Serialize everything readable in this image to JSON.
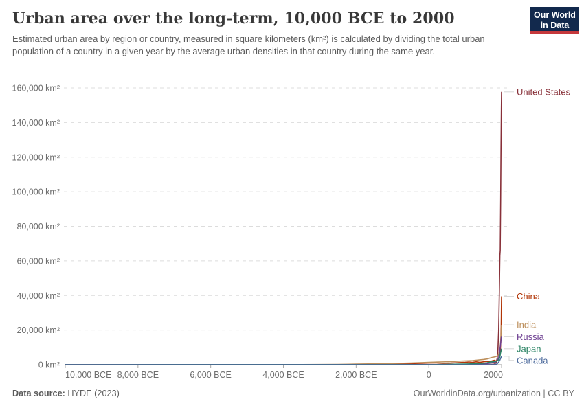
{
  "header": {
    "logo_line1": "Our World",
    "logo_line2": "in Data",
    "logo_bg_color": "#12294d",
    "logo_bar_color": "#c5383c"
  },
  "chart_data": {
    "type": "line",
    "title": "Urban area over the long-term, 10,000 BCE to 2000",
    "subtitle": "Estimated urban area by region or country, measured in square kilometers (km²) is calculated by dividing the total urban population of a country in a given year by the average urban densities in that country during the same year.",
    "xlabel": "",
    "ylabel": "km²",
    "x_range": [
      -10000,
      2000
    ],
    "y_range": [
      0,
      160000
    ],
    "grid": "dashed horizontal gridlines",
    "legend_position": "entity labels at right edge of plot",
    "x_ticks": [
      {
        "value": -10000,
        "label": "10,000 BCE"
      },
      {
        "value": -8000,
        "label": "8,000 BCE"
      },
      {
        "value": -6000,
        "label": "6,000 BCE"
      },
      {
        "value": -4000,
        "label": "4,000 BCE"
      },
      {
        "value": -2000,
        "label": "2,000 BCE"
      },
      {
        "value": 0,
        "label": "0"
      },
      {
        "value": 2000,
        "label": "2000"
      }
    ],
    "y_ticks": [
      {
        "value": 0,
        "label": "0 km²"
      },
      {
        "value": 20000,
        "label": "20,000 km²"
      },
      {
        "value": 40000,
        "label": "40,000 km²"
      },
      {
        "value": 60000,
        "label": "60,000 km²"
      },
      {
        "value": 80000,
        "label": "80,000 km²"
      },
      {
        "value": 100000,
        "label": "100,000 km²"
      },
      {
        "value": 120000,
        "label": "120,000 km²"
      },
      {
        "value": 140000,
        "label": "140,000 km²"
      },
      {
        "value": 160000,
        "label": "160,000 km²"
      }
    ],
    "series": [
      {
        "name": "United States",
        "color": "#883039",
        "points": [
          [
            -10000,
            0
          ],
          [
            -5000,
            0
          ],
          [
            0,
            0
          ],
          [
            1000,
            0
          ],
          [
            1500,
            0
          ],
          [
            1600,
            20
          ],
          [
            1700,
            60
          ],
          [
            1800,
            300
          ],
          [
            1850,
            1200
          ],
          [
            1880,
            3500
          ],
          [
            1900,
            8000
          ],
          [
            1920,
            20000
          ],
          [
            1940,
            42000
          ],
          [
            1950,
            58000
          ],
          [
            1955,
            63000
          ],
          [
            1965,
            66000
          ],
          [
            1975,
            95000
          ],
          [
            1985,
            125000
          ],
          [
            1995,
            148000
          ],
          [
            2000,
            157700
          ]
        ]
      },
      {
        "name": "China",
        "color": "#B13507",
        "points": [
          [
            -10000,
            0
          ],
          [
            -3000,
            20
          ],
          [
            -2000,
            80
          ],
          [
            -1500,
            150
          ],
          [
            -1000,
            350
          ],
          [
            -700,
            500
          ],
          [
            -400,
            700
          ],
          [
            -200,
            850
          ],
          [
            0,
            950
          ],
          [
            200,
            1050
          ],
          [
            400,
            850
          ],
          [
            600,
            950
          ],
          [
            800,
            1200
          ],
          [
            1000,
            1350
          ],
          [
            1100,
            1600
          ],
          [
            1200,
            1400
          ],
          [
            1300,
            1650
          ],
          [
            1400,
            1350
          ],
          [
            1500,
            1650
          ],
          [
            1600,
            1950
          ],
          [
            1650,
            1650
          ],
          [
            1700,
            1950
          ],
          [
            1750,
            2250
          ],
          [
            1800,
            2550
          ],
          [
            1850,
            2100
          ],
          [
            1870,
            2450
          ],
          [
            1900,
            2850
          ],
          [
            1920,
            3500
          ],
          [
            1940,
            4500
          ],
          [
            1950,
            5500
          ],
          [
            1960,
            7000
          ],
          [
            1970,
            9000
          ],
          [
            1980,
            13000
          ],
          [
            1990,
            22000
          ],
          [
            1995,
            30000
          ],
          [
            2000,
            39500
          ]
        ]
      },
      {
        "name": "India",
        "color": "#BC8E5A",
        "points": [
          [
            -10000,
            0
          ],
          [
            -4000,
            30
          ],
          [
            -3000,
            100
          ],
          [
            -2500,
            200
          ],
          [
            -2000,
            350
          ],
          [
            -1500,
            500
          ],
          [
            -1000,
            700
          ],
          [
            -500,
            1000
          ],
          [
            0,
            1400
          ],
          [
            300,
            1600
          ],
          [
            600,
            1800
          ],
          [
            900,
            2100
          ],
          [
            1200,
            2400
          ],
          [
            1500,
            3000
          ],
          [
            1600,
            3300
          ],
          [
            1700,
            3900
          ],
          [
            1750,
            4200
          ],
          [
            1800,
            4400
          ],
          [
            1850,
            4700
          ],
          [
            1900,
            5300
          ],
          [
            1920,
            6000
          ],
          [
            1940,
            7500
          ],
          [
            1950,
            8500
          ],
          [
            1960,
            10000
          ],
          [
            1970,
            12000
          ],
          [
            1980,
            14500
          ],
          [
            1990,
            18000
          ],
          [
            2000,
            23000
          ]
        ]
      },
      {
        "name": "Russia",
        "color": "#6D3E91",
        "points": [
          [
            -10000,
            0
          ],
          [
            0,
            50
          ],
          [
            500,
            100
          ],
          [
            1000,
            250
          ],
          [
            1300,
            350
          ],
          [
            1500,
            500
          ],
          [
            1600,
            650
          ],
          [
            1700,
            900
          ],
          [
            1750,
            1100
          ],
          [
            1800,
            1400
          ],
          [
            1850,
            1800
          ],
          [
            1900,
            3000
          ],
          [
            1920,
            4000
          ],
          [
            1940,
            6500
          ],
          [
            1950,
            7500
          ],
          [
            1960,
            9500
          ],
          [
            1970,
            11000
          ],
          [
            1980,
            13000
          ],
          [
            1990,
            15500
          ],
          [
            2000,
            16100
          ]
        ]
      },
      {
        "name": "Japan",
        "color": "#2C8465",
        "points": [
          [
            -10000,
            0
          ],
          [
            0,
            30
          ],
          [
            500,
            150
          ],
          [
            800,
            300
          ],
          [
            1000,
            400
          ],
          [
            1300,
            600
          ],
          [
            1500,
            800
          ],
          [
            1600,
            1100
          ],
          [
            1700,
            1600
          ],
          [
            1750,
            1700
          ],
          [
            1800,
            1800
          ],
          [
            1850,
            1900
          ],
          [
            1900,
            2400
          ],
          [
            1920,
            3000
          ],
          [
            1940,
            3800
          ],
          [
            1950,
            4200
          ],
          [
            1960,
            5200
          ],
          [
            1970,
            6500
          ],
          [
            1980,
            7400
          ],
          [
            1990,
            8400
          ],
          [
            2000,
            9200
          ]
        ]
      },
      {
        "name": "Canada",
        "color": "#4C6A9C",
        "points": [
          [
            -10000,
            0
          ],
          [
            1600,
            0
          ],
          [
            1700,
            10
          ],
          [
            1800,
            80
          ],
          [
            1850,
            250
          ],
          [
            1880,
            500
          ],
          [
            1900,
            900
          ],
          [
            1920,
            1500
          ],
          [
            1940,
            2100
          ],
          [
            1950,
            2500
          ],
          [
            1960,
            3000
          ],
          [
            1970,
            3400
          ],
          [
            1980,
            3800
          ],
          [
            1990,
            4300
          ],
          [
            2000,
            4800
          ]
        ]
      }
    ]
  },
  "footer": {
    "source_label": "Data source:",
    "source_value": "HYDE (2023)",
    "right_text": "OurWorldinData.org/urbanization | CC BY"
  }
}
